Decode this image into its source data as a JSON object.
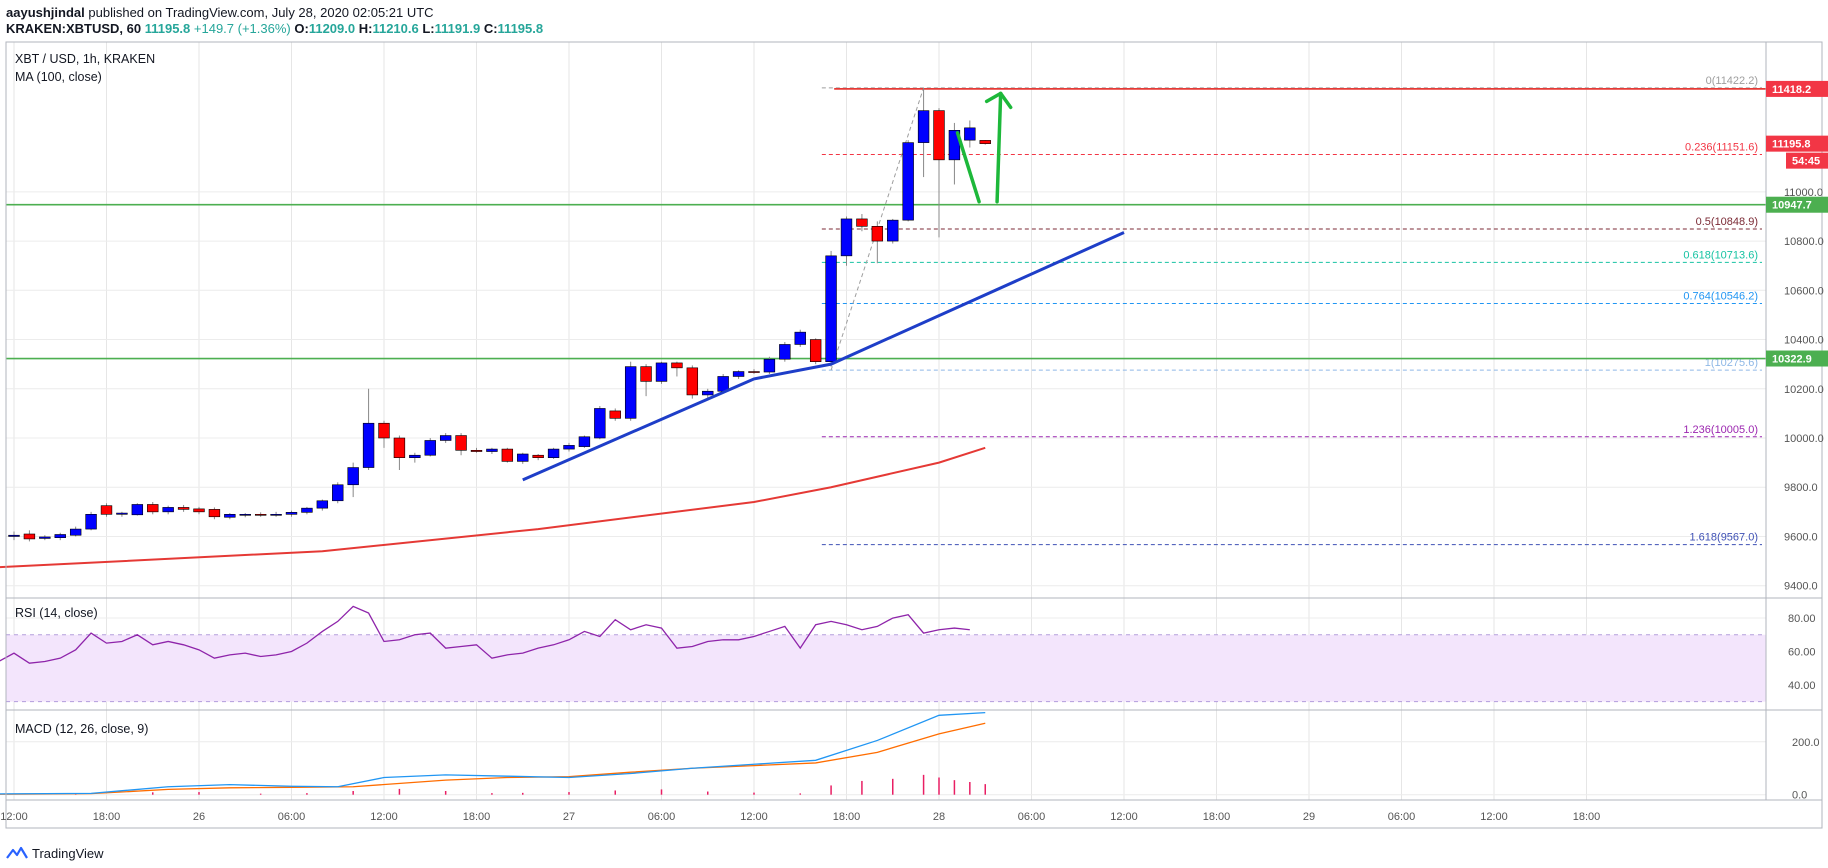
{
  "header": {
    "publisher": "aayushjindal",
    "published_text": "published on TradingView.com, July 28, 2020 02:05:21 UTC",
    "symbol": "KRAKEN:XBTUSD, 60",
    "price": "11195.8",
    "change": "+149.7 (+1.36%)",
    "o_label": "O:",
    "o_value": "11209.0",
    "h_label": "H:",
    "h_value": "11210.6",
    "l_label": "L:",
    "l_value": "11191.9",
    "c_label": "C:",
    "c_value": "11195.8"
  },
  "panes": {
    "main_title": "XBT / USD, 1h, KRAKEN",
    "ma_title": "MA (100, close)",
    "rsi_title": "RSI (14, close)",
    "macd_title": "MACD (12, 26, close, 9)"
  },
  "footer": {
    "brand": "TradingView",
    "logo_icon": "tradingview-logo-icon"
  },
  "colors": {
    "up": "#0000ff",
    "down": "#ff0000",
    "ma": "#e53935",
    "rsi": "#8e24aa",
    "macd": "#2196f3",
    "signal": "#ff6d00",
    "support": "#4caf50",
    "trendline": "#1e3ec8"
  },
  "chart_data": [
    {
      "type": "candlestick",
      "title": "XBT / USD, 1h, KRAKEN",
      "ylim": [
        9350,
        11560
      ],
      "y_ticks": [
        "11000.0",
        "10800.0",
        "10600.0",
        "10400.0",
        "10200.0",
        "10000.0",
        "9800.0",
        "9600.0",
        "9400.0"
      ],
      "x_ticks": [
        "12:00",
        "18:00",
        "26",
        "06:00",
        "12:00",
        "18:00",
        "27",
        "06:00",
        "12:00",
        "18:00",
        "28",
        "06:00",
        "12:00",
        "18:00",
        "29",
        "06:00",
        "12:00",
        "18:00"
      ],
      "x_tick_hours": [
        0,
        6,
        12,
        18,
        24,
        30,
        36,
        42,
        48,
        54,
        60,
        66,
        72,
        78,
        84,
        90,
        96,
        102
      ],
      "candles": [
        {
          "t": 0,
          "o": 9600,
          "h": 9620,
          "l": 9585,
          "c": 9605
        },
        {
          "t": 1,
          "o": 9610,
          "h": 9625,
          "l": 9580,
          "c": 9590
        },
        {
          "t": 2,
          "o": 9592,
          "h": 9605,
          "l": 9585,
          "c": 9598
        },
        {
          "t": 3,
          "o": 9595,
          "h": 9615,
          "l": 9585,
          "c": 9608
        },
        {
          "t": 4,
          "o": 9605,
          "h": 9640,
          "l": 9600,
          "c": 9630
        },
        {
          "t": 5,
          "o": 9630,
          "h": 9700,
          "l": 9625,
          "c": 9690
        },
        {
          "t": 6,
          "o": 9725,
          "h": 9735,
          "l": 9680,
          "c": 9690
        },
        {
          "t": 7,
          "o": 9690,
          "h": 9700,
          "l": 9680,
          "c": 9695
        },
        {
          "t": 8,
          "o": 9688,
          "h": 9735,
          "l": 9685,
          "c": 9730
        },
        {
          "t": 9,
          "o": 9730,
          "h": 9740,
          "l": 9690,
          "c": 9700
        },
        {
          "t": 10,
          "o": 9700,
          "h": 9725,
          "l": 9690,
          "c": 9718
        },
        {
          "t": 11,
          "o": 9718,
          "h": 9728,
          "l": 9700,
          "c": 9710
        },
        {
          "t": 12,
          "o": 9712,
          "h": 9720,
          "l": 9690,
          "c": 9700
        },
        {
          "t": 13,
          "o": 9710,
          "h": 9718,
          "l": 9670,
          "c": 9680
        },
        {
          "t": 14,
          "o": 9678,
          "h": 9695,
          "l": 9670,
          "c": 9690
        },
        {
          "t": 15,
          "o": 9688,
          "h": 9695,
          "l": 9678,
          "c": 9690
        },
        {
          "t": 16,
          "o": 9690,
          "h": 9698,
          "l": 9680,
          "c": 9686
        },
        {
          "t": 17,
          "o": 9686,
          "h": 9700,
          "l": 9680,
          "c": 9690
        },
        {
          "t": 18,
          "o": 9690,
          "h": 9705,
          "l": 9680,
          "c": 9698
        },
        {
          "t": 19,
          "o": 9698,
          "h": 9720,
          "l": 9690,
          "c": 9715
        },
        {
          "t": 20,
          "o": 9715,
          "h": 9750,
          "l": 9705,
          "c": 9745
        },
        {
          "t": 21,
          "o": 9745,
          "h": 9820,
          "l": 9735,
          "c": 9810
        },
        {
          "t": 22,
          "o": 9810,
          "h": 9900,
          "l": 9760,
          "c": 9880
        },
        {
          "t": 23,
          "o": 9880,
          "h": 10200,
          "l": 9870,
          "c": 10060
        },
        {
          "t": 24,
          "o": 10060,
          "h": 10070,
          "l": 9960,
          "c": 10000
        },
        {
          "t": 25,
          "o": 10000,
          "h": 10010,
          "l": 9870,
          "c": 9920
        },
        {
          "t": 26,
          "o": 9920,
          "h": 9940,
          "l": 9900,
          "c": 9930
        },
        {
          "t": 27,
          "o": 9930,
          "h": 10000,
          "l": 9925,
          "c": 9990
        },
        {
          "t": 28,
          "o": 9990,
          "h": 10020,
          "l": 9980,
          "c": 10010
        },
        {
          "t": 29,
          "o": 10010,
          "h": 10020,
          "l": 9930,
          "c": 9950
        },
        {
          "t": 30,
          "o": 9950,
          "h": 9960,
          "l": 9940,
          "c": 9945
        },
        {
          "t": 31,
          "o": 9945,
          "h": 9960,
          "l": 9935,
          "c": 9955
        },
        {
          "t": 32,
          "o": 9955,
          "h": 9960,
          "l": 9900,
          "c": 9905
        },
        {
          "t": 33,
          "o": 9905,
          "h": 9940,
          "l": 9895,
          "c": 9935
        },
        {
          "t": 34,
          "o": 9930,
          "h": 9935,
          "l": 9910,
          "c": 9920
        },
        {
          "t": 35,
          "o": 9920,
          "h": 9960,
          "l": 9915,
          "c": 9955
        },
        {
          "t": 36,
          "o": 9955,
          "h": 9980,
          "l": 9945,
          "c": 9970
        },
        {
          "t": 37,
          "o": 9965,
          "h": 10010,
          "l": 9960,
          "c": 10005
        },
        {
          "t": 38,
          "o": 10000,
          "h": 10130,
          "l": 9995,
          "c": 10120
        },
        {
          "t": 39,
          "o": 10110,
          "h": 10120,
          "l": 10070,
          "c": 10080
        },
        {
          "t": 40,
          "o": 10080,
          "h": 10310,
          "l": 10070,
          "c": 10290
        },
        {
          "t": 41,
          "o": 10290,
          "h": 10300,
          "l": 10170,
          "c": 10230
        },
        {
          "t": 42,
          "o": 10230,
          "h": 10310,
          "l": 10220,
          "c": 10305
        },
        {
          "t": 43,
          "o": 10305,
          "h": 10310,
          "l": 10250,
          "c": 10285
        },
        {
          "t": 44,
          "o": 10285,
          "h": 10295,
          "l": 10160,
          "c": 10175
        },
        {
          "t": 45,
          "o": 10175,
          "h": 10200,
          "l": 10160,
          "c": 10190
        },
        {
          "t": 46,
          "o": 10190,
          "h": 10260,
          "l": 10180,
          "c": 10250
        },
        {
          "t": 47,
          "o": 10250,
          "h": 10275,
          "l": 10240,
          "c": 10270
        },
        {
          "t": 48,
          "o": 10270,
          "h": 10280,
          "l": 10260,
          "c": 10268
        },
        {
          "t": 49,
          "o": 10268,
          "h": 10330,
          "l": 10260,
          "c": 10320
        },
        {
          "t": 50,
          "o": 10320,
          "h": 10390,
          "l": 10310,
          "c": 10380
        },
        {
          "t": 51,
          "o": 10380,
          "h": 10440,
          "l": 10370,
          "c": 10430
        },
        {
          "t": 52,
          "o": 10400,
          "h": 10405,
          "l": 10300,
          "c": 10310
        },
        {
          "t": 53,
          "o": 10310,
          "h": 10760,
          "l": 10290,
          "c": 10740
        },
        {
          "t": 54,
          "o": 10740,
          "h": 10900,
          "l": 10700,
          "c": 10890
        },
        {
          "t": 55,
          "o": 10890,
          "h": 10910,
          "l": 10840,
          "c": 10860
        },
        {
          "t": 56,
          "o": 10860,
          "h": 10880,
          "l": 10710,
          "c": 10800
        },
        {
          "t": 57,
          "o": 10800,
          "h": 10890,
          "l": 10790,
          "c": 10885
        },
        {
          "t": 58,
          "o": 10885,
          "h": 11210,
          "l": 10880,
          "c": 11200
        },
        {
          "t": 59,
          "o": 11200,
          "h": 11422,
          "l": 11060,
          "c": 11330
        },
        {
          "t": 60,
          "o": 11330,
          "h": 11340,
          "l": 10815,
          "c": 11130
        },
        {
          "t": 61,
          "o": 11130,
          "h": 11280,
          "l": 11030,
          "c": 11250
        },
        {
          "t": 62,
          "o": 11210,
          "h": 11290,
          "l": 11180,
          "c": 11260
        },
        {
          "t": 63,
          "o": 11209,
          "h": 11210.6,
          "l": 11191.9,
          "c": 11195.8
        }
      ],
      "ma100": [
        [
          -1,
          9475
        ],
        [
          20,
          9540
        ],
        [
          34,
          9630
        ],
        [
          48,
          9740
        ],
        [
          53,
          9800
        ],
        [
          60,
          9900
        ],
        [
          63,
          9960
        ]
      ],
      "fib_levels": [
        {
          "label": "0(11422.2)",
          "value": 11422.2,
          "color": "#9e9e9e"
        },
        {
          "label": "0.236(11151.6)",
          "value": 11151.6,
          "color": "#f23645"
        },
        {
          "label": "0.5(10848.9)",
          "value": 10848.9,
          "color": "#7b2a35"
        },
        {
          "label": "0.618(10713.6)",
          "value": 10713.6,
          "color": "#17c3a3"
        },
        {
          "label": "0.764(10546.2)",
          "value": 10546.2,
          "color": "#2196f3"
        },
        {
          "label": "1(10275.6)",
          "value": 10275.6,
          "color": "#8fb8e6"
        },
        {
          "label": "1.236(10005.0)",
          "value": 10005.0,
          "color": "#9c27b0"
        },
        {
          "label": "1.618(9567.0)",
          "value": 9567.0,
          "color": "#3f51b5"
        }
      ],
      "resistance": {
        "value": 11418.2,
        "label": "11418.2"
      },
      "supports": [
        {
          "value": 10947.7,
          "label": "10947.7"
        },
        {
          "value": 10322.9,
          "label": "10322.9"
        }
      ],
      "price_label": {
        "value": 11195.8,
        "label": "11195.8",
        "countdown": "54:45"
      },
      "trendline": [
        [
          33,
          9830
        ],
        [
          48,
          10240
        ],
        [
          53,
          10300
        ],
        [
          72,
          10835
        ]
      ],
      "projection_arrows": {
        "down": [
          [
            61.2,
            11240
          ],
          [
            62.6,
            10960
          ]
        ],
        "up": [
          [
            62.6,
            10960
          ],
          [
            64,
            11400
          ]
        ]
      }
    },
    {
      "type": "line",
      "title": "RSI (14, close)",
      "ylim": [
        25,
        92
      ],
      "band": [
        30,
        70
      ],
      "y_ticks": [
        "80.00",
        "60.00",
        "40.00"
      ],
      "values": [
        [
          -1,
          54
        ],
        [
          0,
          59
        ],
        [
          1,
          53
        ],
        [
          2,
          54
        ],
        [
          3,
          56
        ],
        [
          4,
          61
        ],
        [
          5,
          71
        ],
        [
          6,
          65
        ],
        [
          7,
          66
        ],
        [
          8,
          70
        ],
        [
          9,
          64
        ],
        [
          10,
          66
        ],
        [
          11,
          64
        ],
        [
          12,
          61
        ],
        [
          13,
          56
        ],
        [
          14,
          58
        ],
        [
          15,
          59
        ],
        [
          16,
          57
        ],
        [
          17,
          58
        ],
        [
          18,
          60
        ],
        [
          19,
          65
        ],
        [
          20,
          72
        ],
        [
          21,
          78
        ],
        [
          22,
          87
        ],
        [
          23,
          83
        ],
        [
          24,
          66
        ],
        [
          25,
          67
        ],
        [
          26,
          70
        ],
        [
          27,
          71
        ],
        [
          28,
          62
        ],
        [
          29,
          63
        ],
        [
          30,
          64
        ],
        [
          31,
          56
        ],
        [
          32,
          58
        ],
        [
          33,
          59
        ],
        [
          34,
          62
        ],
        [
          35,
          64
        ],
        [
          36,
          67
        ],
        [
          37,
          72
        ],
        [
          38,
          69
        ],
        [
          39,
          79
        ],
        [
          40,
          73
        ],
        [
          41,
          76
        ],
        [
          42,
          74
        ],
        [
          43,
          62
        ],
        [
          44,
          63
        ],
        [
          45,
          66
        ],
        [
          46,
          67
        ],
        [
          47,
          67
        ],
        [
          48,
          69
        ],
        [
          49,
          72
        ],
        [
          50,
          75
        ],
        [
          51,
          62
        ],
        [
          52,
          76
        ],
        [
          53,
          78
        ],
        [
          54,
          76
        ],
        [
          55,
          73
        ],
        [
          56,
          75
        ],
        [
          57,
          80
        ],
        [
          58,
          82
        ],
        [
          59,
          71
        ],
        [
          60,
          73
        ],
        [
          61,
          74
        ],
        [
          62,
          73
        ]
      ]
    },
    {
      "type": "line",
      "title": "MACD (12, 26, close, 9)",
      "ylim": [
        -20,
        320
      ],
      "y_ticks": [
        "200.0",
        "0.0"
      ],
      "macd": [
        [
          -1,
          3
        ],
        [
          5,
          5
        ],
        [
          10,
          30
        ],
        [
          14,
          38
        ],
        [
          18,
          32
        ],
        [
          21,
          30
        ],
        [
          24,
          65
        ],
        [
          28,
          75
        ],
        [
          32,
          70
        ],
        [
          36,
          65
        ],
        [
          40,
          80
        ],
        [
          44,
          100
        ],
        [
          48,
          115
        ],
        [
          52,
          130
        ],
        [
          56,
          205
        ],
        [
          60,
          300
        ],
        [
          63,
          310
        ]
      ],
      "signal": [
        [
          -1,
          2
        ],
        [
          5,
          4
        ],
        [
          10,
          20
        ],
        [
          14,
          26
        ],
        [
          18,
          28
        ],
        [
          22,
          30
        ],
        [
          28,
          55
        ],
        [
          32,
          65
        ],
        [
          36,
          68
        ],
        [
          40,
          85
        ],
        [
          44,
          100
        ],
        [
          48,
          110
        ],
        [
          52,
          120
        ],
        [
          56,
          160
        ],
        [
          60,
          230
        ],
        [
          63,
          270
        ]
      ],
      "histogram": [
        [
          -1,
          1
        ],
        [
          4,
          2
        ],
        [
          9,
          9
        ],
        [
          12,
          10
        ],
        [
          16,
          4
        ],
        [
          19,
          6
        ],
        [
          22,
          14
        ],
        [
          25,
          22
        ],
        [
          28,
          14
        ],
        [
          31,
          6
        ],
        [
          33,
          7
        ],
        [
          36,
          10
        ],
        [
          39,
          16
        ],
        [
          42,
          20
        ],
        [
          45,
          12
        ],
        [
          48,
          8
        ],
        [
          51,
          5
        ],
        [
          53,
          35
        ],
        [
          55,
          52
        ],
        [
          57,
          60
        ],
        [
          59,
          75
        ],
        [
          60,
          65
        ],
        [
          61,
          55
        ],
        [
          62,
          48
        ],
        [
          63,
          40
        ]
      ]
    }
  ]
}
